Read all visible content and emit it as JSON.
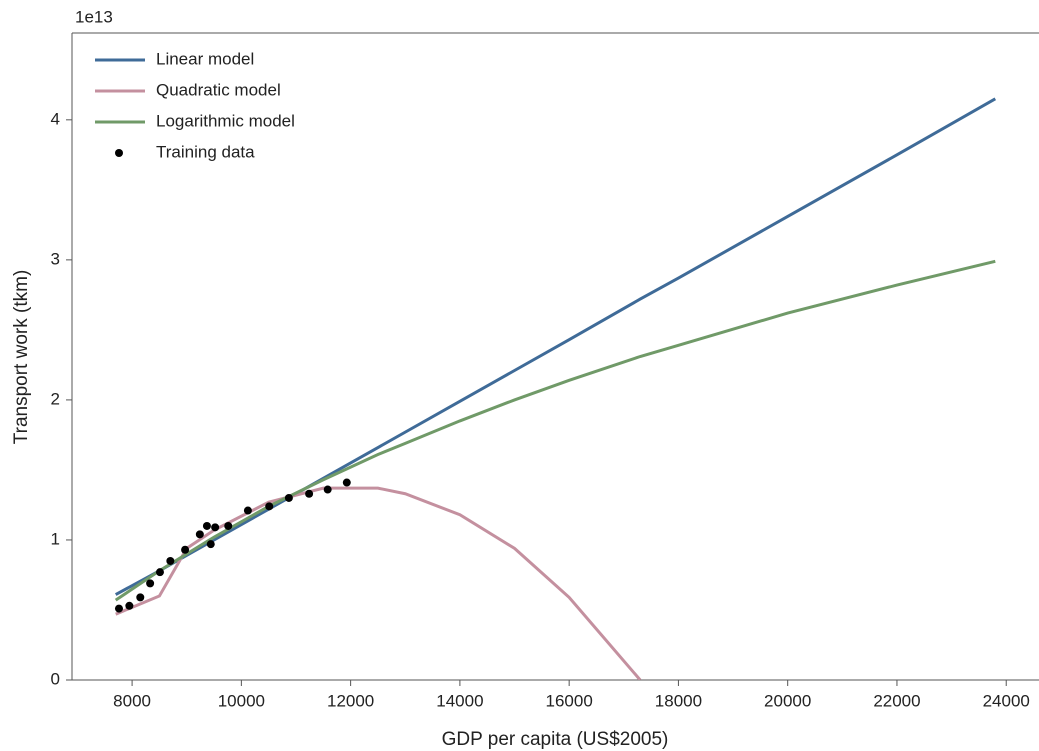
{
  "chart_data": {
    "type": "line",
    "xlabel": "GDP per capita (US$2005)",
    "ylabel": "Transport work (tkm)",
    "y_offset_label": "1e13",
    "xlim": [
      6900,
      24600
    ],
    "ylim": [
      0,
      4.62
    ],
    "xticks": [
      8000,
      10000,
      12000,
      14000,
      16000,
      18000,
      20000,
      22000,
      24000
    ],
    "yticks": [
      0,
      1,
      2,
      3,
      4
    ],
    "grid": false,
    "legend": "upper left",
    "x": [
      7700,
      8500,
      9000,
      9500,
      10500,
      11500,
      12500,
      13000,
      14000,
      15000,
      16000,
      17300,
      18000,
      20000,
      22000,
      23800
    ],
    "series": [
      {
        "name": "Linear model",
        "color": "#3f6b98",
        "values": [
          0.61,
          0.78,
          0.89,
          1.0,
          1.22,
          1.44,
          1.66,
          1.77,
          1.99,
          2.21,
          2.43,
          2.72,
          2.87,
          3.31,
          3.75,
          4.15
        ]
      },
      {
        "name": "Quadratic model",
        "color": "#c4909f",
        "values": [
          0.47,
          0.6,
          0.94,
          1.07,
          1.27,
          1.37,
          1.37,
          1.33,
          1.18,
          0.94,
          0.59,
          0,
          null,
          null,
          null,
          null
        ]
      },
      {
        "name": "Logarithmic model",
        "color": "#709a68",
        "values": [
          0.57,
          0.78,
          0.9,
          1.02,
          1.24,
          1.43,
          1.61,
          1.69,
          1.85,
          2.0,
          2.14,
          2.31,
          2.39,
          2.62,
          2.82,
          2.99
        ]
      },
      {
        "name": "Training data",
        "color": "#000000",
        "type": "scatter",
        "x": [
          7760,
          7950,
          8150,
          8330,
          8510,
          8700,
          8970,
          9240,
          9370,
          9440,
          9520,
          9760,
          10120,
          10510,
          10870,
          11240,
          11580,
          11930
        ],
        "values": [
          0.51,
          0.53,
          0.59,
          0.69,
          0.77,
          0.85,
          0.93,
          1.04,
          1.1,
          0.97,
          1.09,
          1.1,
          1.21,
          1.24,
          1.3,
          1.33,
          1.36,
          1.41
        ]
      }
    ]
  }
}
